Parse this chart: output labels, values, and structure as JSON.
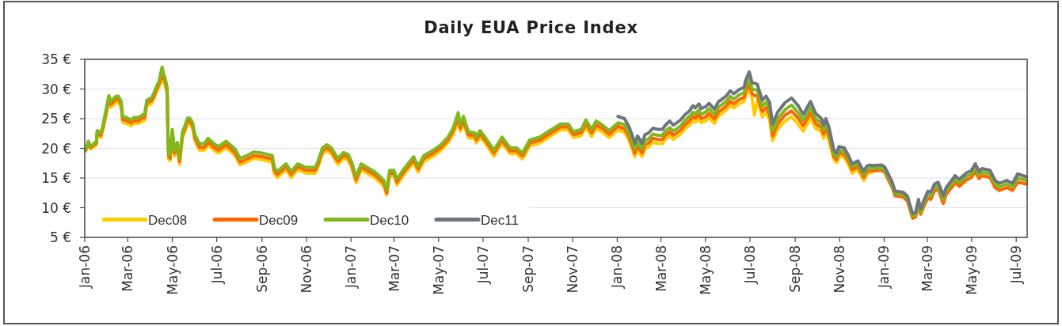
{
  "chart_data": {
    "type": "line",
    "title": "Daily EUA Price Index",
    "x": [
      "2006-01-02",
      "2006-01-06",
      "2006-01-09",
      "2006-01-17",
      "2006-01-18",
      "2006-01-23",
      "2006-01-26",
      "2006-01-31",
      "2006-02-03",
      "2006-02-06",
      "2006-02-09",
      "2006-02-13",
      "2006-02-16",
      "2006-02-20",
      "2006-02-22",
      "2006-02-27",
      "2006-03-06",
      "2006-03-09",
      "2006-03-16",
      "2006-03-22",
      "2006-03-24",
      "2006-03-27",
      "2006-04-03",
      "2006-04-06",
      "2006-04-10",
      "2006-04-13",
      "2006-04-17",
      "2006-04-19",
      "2006-04-21",
      "2006-04-24",
      "2006-04-25",
      "2006-04-26",
      "2006-04-28",
      "2006-05-01",
      "2006-05-04",
      "2006-05-08",
      "2006-05-11",
      "2006-05-15",
      "2006-05-18",
      "2006-05-22",
      "2006-05-25",
      "2006-05-29",
      "2006-06-01",
      "2006-06-07",
      "2006-06-14",
      "2006-06-19",
      "2006-06-27",
      "2006-07-03",
      "2006-07-14",
      "2006-07-26",
      "2006-08-02",
      "2006-08-11",
      "2006-08-21",
      "2006-09-01",
      "2006-09-15",
      "2006-09-18",
      "2006-09-22",
      "2006-10-04",
      "2006-10-11",
      "2006-10-20",
      "2006-10-31",
      "2006-11-13",
      "2006-11-17",
      "2006-11-23",
      "2006-11-29",
      "2006-12-05",
      "2006-12-14",
      "2006-12-22",
      "2006-12-28",
      "2007-01-02",
      "2007-01-08",
      "2007-01-15",
      "2007-01-23",
      "2007-02-02",
      "2007-02-12",
      "2007-02-15",
      "2007-02-19",
      "2007-02-23",
      "2007-03-01",
      "2007-03-05",
      "2007-03-13",
      "2007-03-22",
      "2007-03-28",
      "2007-04-03",
      "2007-04-11",
      "2007-04-24",
      "2007-05-04",
      "2007-05-14",
      "2007-05-21",
      "2007-05-28",
      "2007-05-31",
      "2007-06-04",
      "2007-06-11",
      "2007-06-20",
      "2007-06-22",
      "2007-06-27",
      "2007-07-05",
      "2007-07-16",
      "2007-07-27",
      "2007-08-07",
      "2007-08-16",
      "2007-08-24",
      "2007-09-03",
      "2007-09-17",
      "2007-09-28",
      "2007-10-15",
      "2007-10-26",
      "2007-11-02",
      "2007-11-13",
      "2007-11-19",
      "2007-11-27",
      "2007-12-03",
      "2007-12-12",
      "2007-12-21",
      "2008-01-02",
      "2008-01-11",
      "2008-01-17",
      "2008-01-21",
      "2008-01-25",
      "2008-01-29",
      "2008-02-04",
      "2008-02-08",
      "2008-02-13",
      "2008-02-19",
      "2008-02-26",
      "2008-03-03",
      "2008-03-07",
      "2008-03-13",
      "2008-03-18",
      "2008-03-28",
      "2008-04-03",
      "2008-04-09",
      "2008-04-14",
      "2008-04-17",
      "2008-04-22",
      "2008-04-25",
      "2008-05-01",
      "2008-05-06",
      "2008-05-13",
      "2008-05-19",
      "2008-05-23",
      "2008-05-29",
      "2008-06-04",
      "2008-06-09",
      "2008-06-16",
      "2008-06-23",
      "2008-06-25",
      "2008-06-30",
      "2008-07-04",
      "2008-07-07",
      "2008-07-11",
      "2008-07-15",
      "2008-07-18",
      "2008-07-23",
      "2008-07-28",
      "2008-08-01",
      "2008-08-08",
      "2008-08-18",
      "2008-08-27",
      "2008-09-05",
      "2008-09-12",
      "2008-09-22",
      "2008-09-29",
      "2008-10-07",
      "2008-10-10",
      "2008-10-13",
      "2008-10-17",
      "2008-10-24",
      "2008-10-28",
      "2008-10-31",
      "2008-11-07",
      "2008-11-13",
      "2008-11-18",
      "2008-11-26",
      "2008-12-04",
      "2008-12-08",
      "2008-12-12",
      "2008-12-15",
      "2008-12-29",
      "2009-01-02",
      "2009-01-12",
      "2009-01-16",
      "2009-01-27",
      "2009-02-02",
      "2009-02-05",
      "2009-02-09",
      "2009-02-13",
      "2009-02-17",
      "2009-02-20",
      "2009-02-25",
      "2009-03-02",
      "2009-03-06",
      "2009-03-11",
      "2009-03-16",
      "2009-03-23",
      "2009-03-27",
      "2009-04-06",
      "2009-04-08",
      "2009-04-14",
      "2009-04-24",
      "2009-04-30",
      "2009-05-06",
      "2009-05-11",
      "2009-05-15",
      "2009-05-26",
      "2009-06-02",
      "2009-06-08",
      "2009-06-18",
      "2009-06-26",
      "2009-07-03",
      "2009-07-15"
    ],
    "series": [
      {
        "name": "Dec08",
        "color": "#ffcc00",
        "values": [
          19.5,
          20.6,
          19.9,
          20.6,
          22.4,
          21.8,
          23.1,
          26.0,
          27.8,
          26.9,
          27.3,
          27.8,
          27.8,
          26.9,
          24.4,
          24.2,
          23.8,
          24.2,
          24.2,
          24.7,
          24.7,
          27.1,
          27.6,
          28.4,
          29.6,
          30.4,
          31.6,
          31.3,
          30.7,
          29.1,
          21.8,
          18.2,
          17.9,
          22.2,
          18.7,
          20.0,
          17.3,
          21.8,
          22.7,
          24.1,
          24.1,
          23.3,
          21.3,
          19.7,
          19.7,
          20.6,
          19.7,
          19.2,
          20.1,
          18.8,
          17.2,
          17.7,
          18.3,
          18.1,
          17.7,
          15.7,
          15.1,
          16.4,
          15.1,
          16.4,
          15.8,
          15.8,
          16.9,
          19.1,
          19.6,
          19.1,
          17.3,
          18.3,
          18.0,
          16.7,
          14.2,
          16.4,
          15.8,
          15.1,
          14.0,
          13.6,
          12.1,
          15.3,
          15.3,
          13.8,
          15.3,
          16.7,
          17.6,
          16.0,
          17.8,
          18.7,
          19.6,
          20.9,
          22.4,
          24.6,
          22.9,
          24.3,
          21.8,
          21.6,
          20.9,
          22.0,
          20.7,
          18.7,
          20.9,
          19.1,
          19.1,
          18.2,
          20.4,
          20.9,
          21.8,
          23.1,
          23.1,
          21.8,
          22.2,
          23.6,
          22.0,
          23.4,
          22.7,
          21.8,
          23.1,
          22.7,
          21.4,
          20.1,
          18.6,
          19.8,
          18.6,
          19.9,
          20.2,
          21.0,
          20.8,
          20.8,
          21.5,
          22.1,
          21.5,
          22.4,
          23.3,
          23.9,
          24.7,
          24.4,
          25.0,
          24.3,
          24.6,
          25.2,
          24.2,
          25.5,
          25.8,
          26.4,
          27.3,
          26.8,
          27.5,
          27.9,
          28.9,
          29.9,
          28.4,
          25.6,
          28.1,
          26.5,
          25.3,
          26.0,
          24.8,
          21.3,
          23.2,
          24.6,
          25.3,
          24.1,
          22.9,
          25.1,
          23.4,
          22.8,
          21.7,
          22.8,
          21.5,
          18.1,
          17.6,
          18.7,
          18.5,
          17.3,
          15.8,
          16.4,
          14.6,
          15.5,
          16.0,
          15.9,
          null,
          null,
          null,
          null,
          null,
          null,
          null,
          null,
          null,
          null,
          null,
          null,
          null,
          null,
          null,
          null,
          null,
          null,
          null,
          null,
          null,
          null,
          null,
          null,
          null,
          null,
          null,
          null,
          null,
          null,
          null,
          null,
          null
        ]
      },
      {
        "name": "Dec09",
        "color": "#ff6600",
        "values": [
          19.6,
          20.9,
          20.1,
          20.9,
          22.7,
          22.2,
          23.5,
          26.5,
          28.3,
          27.4,
          27.8,
          28.3,
          28.3,
          27.4,
          24.9,
          24.7,
          24.3,
          24.7,
          24.7,
          25.2,
          25.2,
          27.6,
          28.1,
          28.9,
          30.1,
          30.9,
          32.3,
          31.9,
          31.3,
          29.7,
          22.3,
          18.7,
          18.3,
          22.7,
          19.2,
          20.5,
          17.8,
          22.3,
          23.2,
          24.6,
          24.6,
          23.8,
          21.8,
          20.2,
          20.2,
          21.1,
          20.2,
          19.7,
          20.6,
          19.3,
          17.7,
          18.2,
          18.8,
          18.6,
          18.2,
          16.2,
          15.6,
          16.9,
          15.6,
          16.9,
          16.3,
          16.3,
          17.4,
          19.6,
          20.1,
          19.6,
          17.8,
          18.8,
          18.5,
          17.2,
          14.7,
          16.9,
          16.3,
          15.6,
          14.5,
          14.1,
          12.5,
          15.8,
          15.8,
          14.3,
          15.8,
          17.2,
          18.1,
          16.5,
          18.3,
          19.2,
          20.1,
          21.4,
          22.9,
          25.2,
          23.4,
          24.8,
          22.3,
          22.1,
          21.4,
          22.5,
          21.2,
          19.2,
          21.4,
          19.6,
          19.6,
          18.7,
          20.9,
          21.4,
          22.3,
          23.6,
          23.6,
          22.3,
          22.7,
          24.2,
          22.6,
          24.0,
          23.3,
          22.4,
          23.7,
          23.3,
          22.0,
          20.7,
          19.2,
          20.4,
          19.2,
          20.6,
          20.9,
          21.7,
          21.5,
          21.5,
          22.2,
          22.8,
          22.2,
          23.1,
          24.0,
          24.6,
          25.4,
          25.1,
          25.7,
          25.0,
          25.3,
          25.9,
          24.9,
          26.2,
          26.5,
          27.1,
          28.0,
          27.5,
          28.2,
          28.6,
          29.6,
          30.7,
          29.2,
          28.9,
          28.9,
          27.3,
          26.2,
          26.9,
          25.7,
          22.1,
          24.1,
          25.6,
          26.3,
          25.1,
          23.8,
          26.0,
          24.2,
          23.5,
          22.4,
          23.5,
          22.2,
          18.6,
          18.1,
          19.2,
          19.0,
          17.8,
          16.4,
          16.9,
          15.1,
          16.0,
          16.3,
          16.2,
          16.3,
          15.9,
          13.4,
          12.0,
          11.8,
          11.1,
          9.8,
          8.2,
          8.4,
          10.4,
          8.9,
          10.4,
          11.6,
          11.4,
          12.8,
          13.1,
          10.7,
          12.2,
          13.8,
          14.2,
          13.6,
          14.7,
          15.0,
          16.1,
          14.9,
          15.4,
          15.1,
          13.4,
          12.9,
          13.4,
          12.9,
          14.3,
          14.0
        ]
      },
      {
        "name": "Dec10",
        "color": "#80b81e",
        "values": [
          19.7,
          21.2,
          20.3,
          21.2,
          23.0,
          22.6,
          23.9,
          27.0,
          28.9,
          27.9,
          28.3,
          28.8,
          28.8,
          27.9,
          25.4,
          25.2,
          24.8,
          25.2,
          25.2,
          25.7,
          25.7,
          28.1,
          28.6,
          29.4,
          30.6,
          31.4,
          33.7,
          32.6,
          31.9,
          30.3,
          22.8,
          19.2,
          18.8,
          23.2,
          19.7,
          21.0,
          18.3,
          22.8,
          23.7,
          25.1,
          25.1,
          24.3,
          22.3,
          20.8,
          20.8,
          21.7,
          20.8,
          20.3,
          21.2,
          19.9,
          18.3,
          18.8,
          19.4,
          19.2,
          18.8,
          16.8,
          16.1,
          17.4,
          16.1,
          17.4,
          16.8,
          16.8,
          17.9,
          20.1,
          20.6,
          20.1,
          18.3,
          19.3,
          19.0,
          17.7,
          15.2,
          17.4,
          16.8,
          16.1,
          15.0,
          14.6,
          13.0,
          16.3,
          16.3,
          14.8,
          16.3,
          17.7,
          18.6,
          17.0,
          18.8,
          19.7,
          20.6,
          21.9,
          23.4,
          26.0,
          23.9,
          25.4,
          22.8,
          22.6,
          21.9,
          23.0,
          21.7,
          19.7,
          21.9,
          20.1,
          20.1,
          19.2,
          21.4,
          21.9,
          22.8,
          24.1,
          24.1,
          22.8,
          23.2,
          24.8,
          23.2,
          24.6,
          23.9,
          23.0,
          24.3,
          24.0,
          22.7,
          21.4,
          19.9,
          21.1,
          19.9,
          21.3,
          21.6,
          22.4,
          22.2,
          22.2,
          22.9,
          23.5,
          22.9,
          23.8,
          24.7,
          25.4,
          26.1,
          25.8,
          26.5,
          25.7,
          26.1,
          26.7,
          25.7,
          27.0,
          27.3,
          27.9,
          28.8,
          28.3,
          29.0,
          29.4,
          30.4,
          31.6,
          30.0,
          29.9,
          29.8,
          28.2,
          27.1,
          27.8,
          26.6,
          23.0,
          25.0,
          26.5,
          27.3,
          26.0,
          24.7,
          26.9,
          25.0,
          24.2,
          23.1,
          24.2,
          22.9,
          19.1,
          18.6,
          19.7,
          19.5,
          18.3,
          16.9,
          17.4,
          15.6,
          16.5,
          16.7,
          16.6,
          16.7,
          16.3,
          13.8,
          12.4,
          12.2,
          11.5,
          10.2,
          8.6,
          8.8,
          10.9,
          9.3,
          10.9,
          12.2,
          12.0,
          13.4,
          13.7,
          11.4,
          12.8,
          14.4,
          14.8,
          14.2,
          15.3,
          15.6,
          16.7,
          15.5,
          16.0,
          15.7,
          14.0,
          13.5,
          14.0,
          13.5,
          15.0,
          14.6
        ]
      },
      {
        "name": "Dec11",
        "color": "#6e757c",
        "values": [
          null,
          null,
          null,
          null,
          null,
          null,
          null,
          null,
          null,
          null,
          null,
          null,
          null,
          null,
          null,
          null,
          null,
          null,
          null,
          null,
          null,
          null,
          null,
          null,
          null,
          null,
          null,
          null,
          null,
          null,
          null,
          null,
          null,
          null,
          null,
          null,
          null,
          null,
          null,
          null,
          null,
          null,
          null,
          null,
          null,
          null,
          null,
          null,
          null,
          null,
          null,
          null,
          null,
          null,
          null,
          null,
          null,
          null,
          null,
          null,
          null,
          null,
          null,
          null,
          null,
          null,
          null,
          null,
          null,
          null,
          null,
          null,
          null,
          null,
          null,
          null,
          null,
          null,
          null,
          null,
          null,
          null,
          null,
          null,
          null,
          null,
          null,
          null,
          null,
          null,
          null,
          null,
          null,
          null,
          null,
          null,
          null,
          null,
          null,
          null,
          null,
          null,
          null,
          null,
          null,
          null,
          null,
          null,
          null,
          null,
          null,
          null,
          null,
          null,
          25.4,
          25.0,
          23.7,
          22.4,
          20.8,
          22.1,
          20.8,
          22.3,
          22.6,
          23.4,
          23.2,
          23.2,
          23.9,
          24.6,
          23.9,
          24.8,
          25.7,
          26.3,
          27.2,
          26.8,
          27.5,
          26.7,
          27.0,
          27.6,
          26.6,
          27.9,
          28.2,
          28.8,
          29.7,
          29.2,
          29.9,
          30.3,
          31.4,
          32.9,
          31.0,
          31.0,
          30.8,
          29.2,
          28.1,
          28.8,
          27.7,
          24.1,
          26.1,
          27.7,
          28.5,
          27.2,
          25.7,
          27.9,
          25.9,
          25.0,
          23.9,
          25.0,
          23.7,
          19.7,
          19.2,
          20.3,
          20.1,
          18.8,
          17.4,
          17.9,
          16.1,
          17.0,
          17.2,
          17.1,
          17.2,
          16.8,
          14.3,
          12.8,
          12.6,
          11.9,
          10.6,
          9.0,
          9.2,
          11.4,
          9.8,
          11.4,
          12.8,
          12.6,
          14.0,
          14.3,
          12.0,
          13.4,
          15.0,
          15.4,
          14.8,
          15.9,
          16.2,
          17.4,
          16.1,
          16.6,
          16.3,
          14.6,
          14.1,
          14.6,
          14.1,
          15.7,
          15.2
        ]
      }
    ],
    "xlim": [
      "2006-01-01",
      "2009-07-16"
    ],
    "xticks": [
      {
        "value": "2006-01-01",
        "label": "Jan-06"
      },
      {
        "value": "2006-03-01",
        "label": "Mar-06"
      },
      {
        "value": "2006-05-01",
        "label": "May-06"
      },
      {
        "value": "2006-07-01",
        "label": "Jul-06"
      },
      {
        "value": "2006-09-01",
        "label": "Sep-06"
      },
      {
        "value": "2006-11-01",
        "label": "Nov-06"
      },
      {
        "value": "2007-01-01",
        "label": "Jan-07"
      },
      {
        "value": "2007-03-01",
        "label": "Mar-07"
      },
      {
        "value": "2007-05-01",
        "label": "May-07"
      },
      {
        "value": "2007-07-01",
        "label": "Jul-07"
      },
      {
        "value": "2007-09-01",
        "label": "Sep-07"
      },
      {
        "value": "2007-11-01",
        "label": "Nov-07"
      },
      {
        "value": "2008-01-01",
        "label": "Jan-08"
      },
      {
        "value": "2008-03-01",
        "label": "Mar-08"
      },
      {
        "value": "2008-05-01",
        "label": "May-08"
      },
      {
        "value": "2008-07-01",
        "label": "Jul-08"
      },
      {
        "value": "2008-09-01",
        "label": "Sep-08"
      },
      {
        "value": "2008-11-01",
        "label": "Nov-08"
      },
      {
        "value": "2009-01-01",
        "label": "Jan-09"
      },
      {
        "value": "2009-03-01",
        "label": "Mar-09"
      },
      {
        "value": "2009-05-01",
        "label": "May-09"
      },
      {
        "value": "2009-07-01",
        "label": "Jul-09"
      }
    ],
    "ylim": [
      5,
      35
    ],
    "yticks": [
      {
        "value": 5,
        "label": "5 €"
      },
      {
        "value": 10,
        "label": "10 €"
      },
      {
        "value": 15,
        "label": "15 €"
      },
      {
        "value": 20,
        "label": "20 €"
      },
      {
        "value": 25,
        "label": "25 €"
      },
      {
        "value": 30,
        "label": "30 €"
      },
      {
        "value": 35,
        "label": "35 €"
      }
    ],
    "grid": "y",
    "legend": "bottom left",
    "line_style": "solid"
  }
}
